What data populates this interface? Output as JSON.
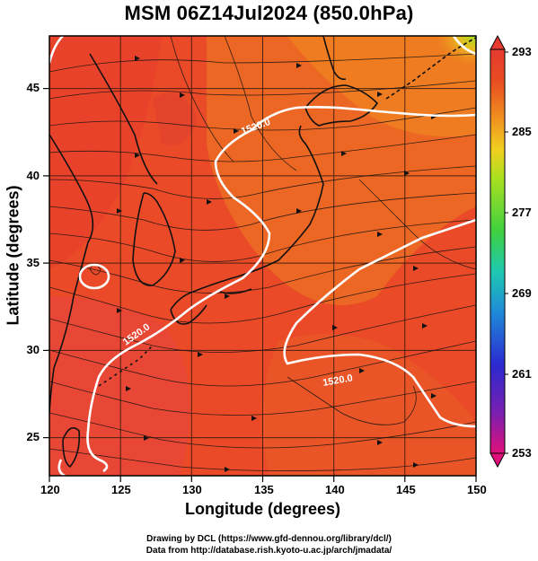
{
  "title": "MSM 06Z14Jul2024 (850.0hPa)",
  "xlabel": "Longitude (degrees)",
  "ylabel": "Latitude  (degrees)",
  "credits": [
    "Drawing by DCL (https://www.gfd-dennou.org/library/dcl/)",
    "Data from http://database.rish.kyoto-u.ac.jp/arch/jmadata/"
  ],
  "map": {
    "lon_range": [
      120,
      150
    ],
    "lat_range": [
      22.4,
      47.6
    ],
    "lon_ticks": [
      "120",
      "125",
      "130",
      "135",
      "140",
      "145",
      "150"
    ],
    "lat_ticks": [
      "25",
      "30",
      "35",
      "40",
      "45"
    ],
    "field": "temperature (K), 850 hPa",
    "contour_labels": [
      "1520.0",
      "1520.0",
      "1520.0"
    ]
  },
  "colorbar": {
    "range": [
      253,
      293
    ],
    "labels": [
      "293",
      "285",
      "277",
      "269",
      "261",
      "253"
    ],
    "colors": [
      "#e0107a",
      "#7a1fb0",
      "#2b2ad0",
      "#1f8bd8",
      "#1ec8b0",
      "#3fd040",
      "#a8e020",
      "#f0d020",
      "#f09020",
      "#e84d20",
      "#e63a30"
    ]
  }
}
